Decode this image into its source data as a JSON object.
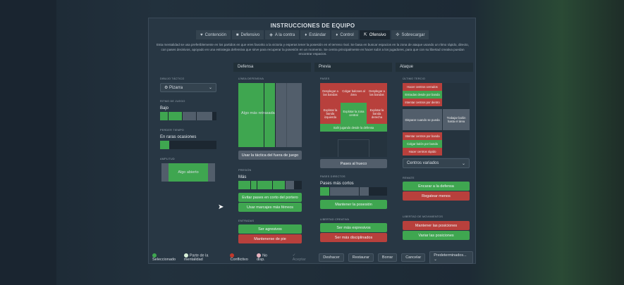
{
  "title": "INSTRUCCIONES DE EQUIPO",
  "tabs": [
    {
      "label": "Contención",
      "icon": "shield-heart-icon"
    },
    {
      "label": "Defensivo",
      "icon": "shield-icon"
    },
    {
      "label": "A la contra",
      "icon": "counter-icon"
    },
    {
      "label": "Estándar",
      "icon": "shirt-icon"
    },
    {
      "label": "Control",
      "icon": "shirt-icon"
    },
    {
      "label": "Ofensivo",
      "icon": "arrows-out-icon",
      "active": true
    },
    {
      "label": "Sobrecargar",
      "icon": "overload-icon"
    }
  ],
  "description": "Esta mentalidad se usa preferiblemente en los partidos en que eres favorito a la victoria y esperas tener la posesión en el terreno rival. Se basa en buscar espacios en la zona de ataque usando un ritmo rápido, directo, con pases decisivos, apoyado en una estrategia defensiva que sirve para recuperar la posesión en un momento. Se centra principalmente en hacer subir a los jugadores, para que con su libertad creativa puedan encontrar espacios.",
  "columns": {
    "defense": "Defensa",
    "build": "Previa",
    "attack": "Ataque"
  },
  "left": {
    "formation_label": "Dibujo táctico",
    "formation": "Pizarra",
    "tempo_label": "Ritmo de juego",
    "tempo_value": "Bajo",
    "tempo_level": 0.4,
    "timewaste_label": "Perder tiempo",
    "timewaste_value": "En raras ocasiones",
    "timewaste_level": 0.15,
    "width_label": "Amplitud",
    "width_value": "Algo abierto"
  },
  "defense": {
    "line_label": "Línea defensiva",
    "line_value": "Algo más retrasada",
    "offside_button": "Usar la táctica del fuera de juego",
    "press_label": "Presión",
    "press_value": "Más",
    "press_level": 0.75,
    "buttons": [
      "Evitar pases en corto del portero",
      "Usar marcajes más férreos"
    ],
    "tackle_label": "Entradas",
    "tackle_buttons": [
      "Ser agresivos",
      "Mantenerse de pie"
    ]
  },
  "build": {
    "passes_label": "Pases",
    "cells": [
      "Desplegar a las bandas",
      "Colgar balones al área",
      "Desplegar a las bandas",
      "Explotar la banda izquierda",
      "Explotar la zona central",
      "Explotar la banda derecha",
      "Salir jugando desde la defensa"
    ],
    "through_button": "Pases al hueco",
    "direct_label": "Pases directos",
    "direct_value": "Pases más cortos",
    "direct_level": 0.2,
    "possession_button": "Mantener la posesión",
    "creative_label": "Libertad creativa",
    "creative_buttons": [
      "Ser más expresivos",
      "Ser más disciplinados"
    ]
  },
  "attack": {
    "third_label": "Último tercio",
    "cells": [
      "Hacer centros cerrados",
      "Entradas desde por banda",
      "Intentar centros por dentro",
      "Disparar cuando se pueda",
      "Trabajar balón hasta el área",
      "Intentar centros por banda",
      "Colgar balón por banda",
      "Hacer centros rápido"
    ],
    "cross_select": "Centros variados",
    "finish_label": "Remate",
    "finish_buttons": [
      "Encarar a la defensa",
      "Regatear menos"
    ],
    "movement_label": "Libertad de movimientos",
    "movement_buttons": [
      "Mantener las posiciones",
      "Variar las posiciones"
    ]
  },
  "legend": [
    {
      "label": "Seleccionado",
      "color": "#3fa650"
    },
    {
      "label": "Parte de la mentalidad",
      "color": "#d8f0d8"
    },
    {
      "label": "Conflictivo",
      "color": "#c0392b"
    },
    {
      "label": "No disp.",
      "color": "#e8b4c0"
    }
  ],
  "footer": {
    "accept": "Aceptar",
    "undo": "Deshacer",
    "restore": "Restaurar",
    "clear": "Borrar",
    "cancel": "Cancelar",
    "presets": "Predeterminados..."
  }
}
